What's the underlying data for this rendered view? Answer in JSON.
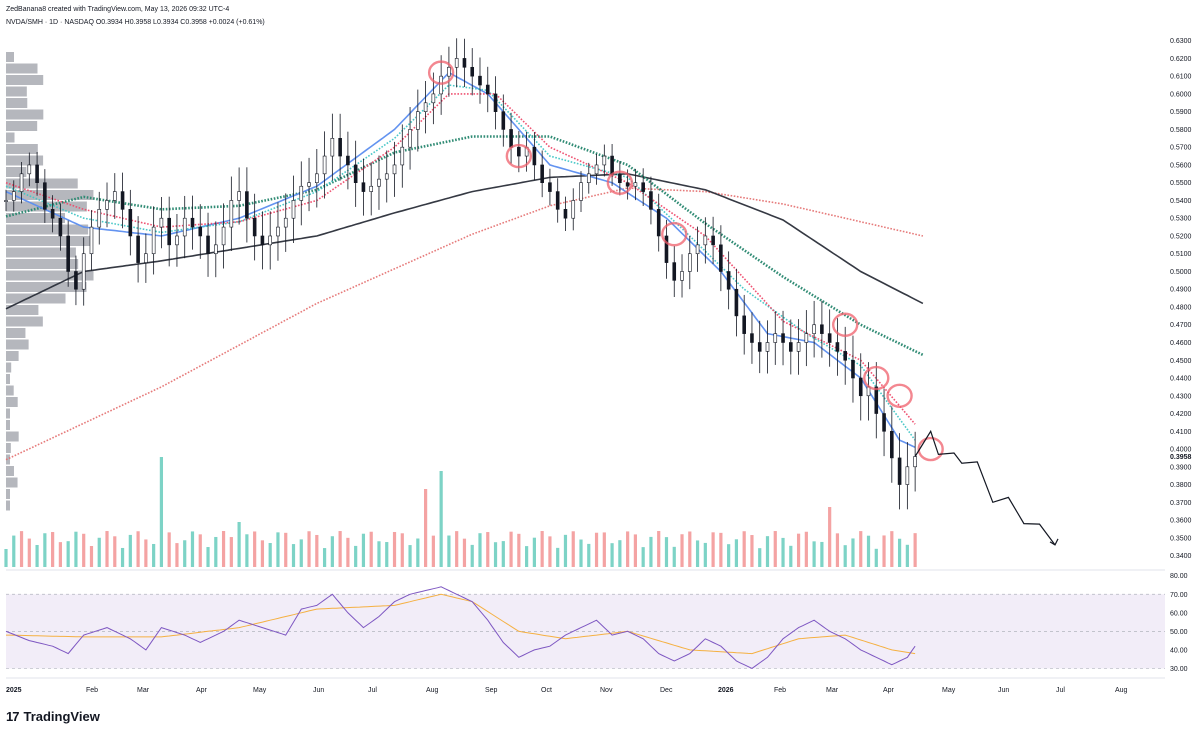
{
  "header": {
    "created_line": "ZedBanana8 created with TradingView.com, May 13, 2026 09:32 UTC-4",
    "symbol_line": "NVDA/SMH · 1D · NASDAQ  O0.3934  H0.3958  L0.3934  C0.3958  +0.0024 (+0.61%)"
  },
  "footer": {
    "brand": "TradingView",
    "logo_mark": "17"
  },
  "chart_data": {
    "type": "line",
    "title": "NVDA/SMH · 1D · NASDAQ",
    "ohlc": {
      "open": 0.3934,
      "high": 0.3958,
      "low": 0.3934,
      "close": 0.3958,
      "change": 0.0024,
      "change_pct": 0.61
    },
    "current_price_label": "0.3958",
    "x_tick_labels": [
      "2025",
      "Feb",
      "Mar",
      "Apr",
      "May",
      "Jun",
      "Jul",
      "Aug",
      "Sep",
      "Oct",
      "Nov",
      "Dec",
      "2026",
      "Feb",
      "Mar",
      "Apr",
      "May",
      "Jun",
      "Jul",
      "Aug"
    ],
    "price_axis": {
      "ylim": [
        0.333,
        0.636
      ],
      "tick_labels": [
        "0.6300",
        "0.6200",
        "0.6100",
        "0.6000",
        "0.5900",
        "0.5800",
        "0.5700",
        "0.5600",
        "0.5500",
        "0.5400",
        "0.5300",
        "0.5200",
        "0.5100",
        "0.5000",
        "0.4900",
        "0.4800",
        "0.4700",
        "0.4600",
        "0.4500",
        "0.4400",
        "0.4300",
        "0.4200",
        "0.4100",
        "0.4000",
        "0.3900",
        "0.3800",
        "0.3700",
        "0.3600",
        "0.3500",
        "0.3400"
      ]
    },
    "rsi_axis": {
      "ylim": [
        27,
        82
      ],
      "tick_labels": [
        "80.00",
        "70.00",
        "60.00",
        "50.00",
        "40.00",
        "30.00"
      ],
      "band": [
        30,
        70
      ]
    },
    "price_path": [
      [
        0,
        0.54
      ],
      [
        1,
        0.545
      ],
      [
        2,
        0.555
      ],
      [
        3,
        0.56
      ],
      [
        4,
        0.55
      ],
      [
        5,
        0.535
      ],
      [
        6,
        0.53
      ],
      [
        7,
        0.52
      ],
      [
        8,
        0.5
      ],
      [
        9,
        0.49
      ],
      [
        10,
        0.51
      ],
      [
        11,
        0.525
      ],
      [
        12,
        0.535
      ],
      [
        13,
        0.54
      ],
      [
        14,
        0.545
      ],
      [
        15,
        0.535
      ],
      [
        16,
        0.52
      ],
      [
        17,
        0.505
      ],
      [
        18,
        0.51
      ],
      [
        19,
        0.525
      ],
      [
        20,
        0.53
      ],
      [
        21,
        0.515
      ],
      [
        22,
        0.52
      ],
      [
        23,
        0.53
      ],
      [
        24,
        0.525
      ],
      [
        25,
        0.52
      ],
      [
        26,
        0.51
      ],
      [
        27,
        0.515
      ],
      [
        28,
        0.525
      ],
      [
        29,
        0.54
      ],
      [
        30,
        0.545
      ],
      [
        31,
        0.53
      ],
      [
        32,
        0.52
      ],
      [
        33,
        0.515
      ],
      [
        34,
        0.52
      ],
      [
        35,
        0.525
      ],
      [
        36,
        0.53
      ],
      [
        37,
        0.54
      ],
      [
        38,
        0.548
      ],
      [
        39,
        0.55
      ],
      [
        40,
        0.555
      ],
      [
        41,
        0.565
      ],
      [
        42,
        0.575
      ],
      [
        43,
        0.565
      ],
      [
        44,
        0.56
      ],
      [
        45,
        0.55
      ],
      [
        46,
        0.545
      ],
      [
        47,
        0.548
      ],
      [
        48,
        0.552
      ],
      [
        49,
        0.555
      ],
      [
        50,
        0.56
      ],
      [
        51,
        0.57
      ],
      [
        52,
        0.58
      ],
      [
        53,
        0.59
      ],
      [
        54,
        0.595
      ],
      [
        55,
        0.6
      ],
      [
        56,
        0.61
      ],
      [
        57,
        0.615
      ],
      [
        58,
        0.62
      ],
      [
        59,
        0.615
      ],
      [
        60,
        0.61
      ],
      [
        61,
        0.605
      ],
      [
        62,
        0.6
      ],
      [
        63,
        0.59
      ],
      [
        64,
        0.58
      ],
      [
        65,
        0.57
      ],
      [
        66,
        0.565
      ],
      [
        67,
        0.57
      ],
      [
        68,
        0.56
      ],
      [
        69,
        0.55
      ],
      [
        70,
        0.545
      ],
      [
        71,
        0.535
      ],
      [
        72,
        0.53
      ],
      [
        73,
        0.54
      ],
      [
        74,
        0.55
      ],
      [
        75,
        0.555
      ],
      [
        76,
        0.56
      ],
      [
        77,
        0.565
      ],
      [
        78,
        0.555
      ],
      [
        79,
        0.55
      ],
      [
        80,
        0.548
      ],
      [
        81,
        0.55
      ],
      [
        82,
        0.545
      ],
      [
        83,
        0.535
      ],
      [
        84,
        0.52
      ],
      [
        85,
        0.505
      ],
      [
        86,
        0.495
      ],
      [
        87,
        0.5
      ],
      [
        88,
        0.51
      ],
      [
        89,
        0.515
      ],
      [
        90,
        0.52
      ],
      [
        91,
        0.515
      ],
      [
        92,
        0.5
      ],
      [
        93,
        0.49
      ],
      [
        94,
        0.475
      ],
      [
        95,
        0.465
      ],
      [
        96,
        0.46
      ],
      [
        97,
        0.455
      ],
      [
        98,
        0.46
      ],
      [
        99,
        0.465
      ],
      [
        100,
        0.46
      ],
      [
        101,
        0.455
      ],
      [
        102,
        0.46
      ],
      [
        103,
        0.465
      ],
      [
        104,
        0.47
      ],
      [
        105,
        0.465
      ],
      [
        106,
        0.46
      ],
      [
        107,
        0.455
      ],
      [
        108,
        0.45
      ],
      [
        109,
        0.44
      ],
      [
        110,
        0.43
      ],
      [
        111,
        0.435
      ],
      [
        112,
        0.42
      ],
      [
        113,
        0.41
      ],
      [
        114,
        0.395
      ],
      [
        115,
        0.38
      ],
      [
        116,
        0.39
      ],
      [
        117,
        0.3958
      ]
    ],
    "projection_path": [
      [
        117,
        0.3958
      ],
      [
        119,
        0.41
      ],
      [
        120,
        0.397
      ],
      [
        122,
        0.4
      ],
      [
        123,
        0.392
      ],
      [
        125,
        0.395
      ],
      [
        127,
        0.37
      ],
      [
        129,
        0.375
      ],
      [
        131,
        0.358
      ],
      [
        133,
        0.36
      ],
      [
        135,
        0.346
      ]
    ],
    "series": [
      {
        "name": "",
        "color": "#e57373",
        "points": [
          [
            0,
            0.394
          ],
          [
            20,
            0.435
          ],
          [
            40,
            0.482
          ],
          [
            60,
            0.521
          ],
          [
            70,
            0.537
          ],
          [
            80,
            0.547
          ],
          [
            90,
            0.545
          ],
          [
            100,
            0.538
          ],
          [
            110,
            0.528
          ],
          [
            118,
            0.52
          ]
        ]
      },
      {
        "name": "",
        "color": "#2a2e39",
        "points": [
          [
            0,
            0.479
          ],
          [
            10,
            0.5
          ],
          [
            20,
            0.506
          ],
          [
            30,
            0.513
          ],
          [
            40,
            0.52
          ],
          [
            50,
            0.533
          ],
          [
            60,
            0.545
          ],
          [
            70,
            0.553
          ],
          [
            80,
            0.555
          ],
          [
            90,
            0.546
          ],
          [
            100,
            0.529
          ],
          [
            110,
            0.5
          ],
          [
            118,
            0.482
          ]
        ]
      },
      {
        "name": "",
        "color": "#26866e",
        "points": [
          [
            0,
            0.531
          ],
          [
            10,
            0.542
          ],
          [
            20,
            0.535
          ],
          [
            30,
            0.537
          ],
          [
            40,
            0.546
          ],
          [
            50,
            0.567
          ],
          [
            60,
            0.576
          ],
          [
            70,
            0.576
          ],
          [
            80,
            0.56
          ],
          [
            90,
            0.527
          ],
          [
            100,
            0.497
          ],
          [
            110,
            0.47
          ],
          [
            118,
            0.453
          ]
        ]
      },
      {
        "name": "",
        "color": "#5b8def",
        "points": [
          [
            0,
            0.545
          ],
          [
            10,
            0.525
          ],
          [
            20,
            0.52
          ],
          [
            30,
            0.53
          ],
          [
            40,
            0.548
          ],
          [
            50,
            0.58
          ],
          [
            57,
            0.612
          ],
          [
            62,
            0.6
          ],
          [
            70,
            0.56
          ],
          [
            78,
            0.55
          ],
          [
            85,
            0.53
          ],
          [
            92,
            0.5
          ],
          [
            98,
            0.465
          ],
          [
            104,
            0.46
          ],
          [
            110,
            0.44
          ],
          [
            115,
            0.405
          ],
          [
            117,
            0.401
          ]
        ]
      },
      {
        "name": "",
        "color": "#41c5c5",
        "points": [
          [
            0,
            0.548
          ],
          [
            10,
            0.53
          ],
          [
            20,
            0.522
          ],
          [
            30,
            0.528
          ],
          [
            40,
            0.545
          ],
          [
            50,
            0.575
          ],
          [
            57,
            0.605
          ],
          [
            62,
            0.602
          ],
          [
            70,
            0.565
          ],
          [
            80,
            0.553
          ],
          [
            88,
            0.52
          ],
          [
            95,
            0.49
          ],
          [
            103,
            0.465
          ],
          [
            110,
            0.447
          ],
          [
            117,
            0.405
          ]
        ]
      },
      {
        "name": "",
        "color": "#ee4a6a",
        "points": [
          [
            0,
            0.55
          ],
          [
            10,
            0.535
          ],
          [
            20,
            0.525
          ],
          [
            30,
            0.528
          ],
          [
            40,
            0.54
          ],
          [
            50,
            0.57
          ],
          [
            57,
            0.6
          ],
          [
            63,
            0.6
          ],
          [
            70,
            0.57
          ],
          [
            80,
            0.55
          ],
          [
            90,
            0.52
          ],
          [
            100,
            0.472
          ],
          [
            110,
            0.45
          ],
          [
            117,
            0.414
          ]
        ]
      }
    ],
    "rsi": [
      [
        0,
        50
      ],
      [
        3,
        45
      ],
      [
        6,
        42
      ],
      [
        8,
        38
      ],
      [
        10,
        48
      ],
      [
        13,
        52
      ],
      [
        16,
        46
      ],
      [
        18,
        40
      ],
      [
        20,
        52
      ],
      [
        23,
        48
      ],
      [
        25,
        44
      ],
      [
        28,
        50
      ],
      [
        30,
        56
      ],
      [
        33,
        52
      ],
      [
        36,
        48
      ],
      [
        38,
        62
      ],
      [
        40,
        64
      ],
      [
        42,
        70
      ],
      [
        44,
        60
      ],
      [
        46,
        52
      ],
      [
        48,
        58
      ],
      [
        50,
        66
      ],
      [
        52,
        70
      ],
      [
        54,
        72
      ],
      [
        56,
        74
      ],
      [
        58,
        70
      ],
      [
        60,
        66
      ],
      [
        62,
        56
      ],
      [
        64,
        44
      ],
      [
        66,
        36
      ],
      [
        68,
        40
      ],
      [
        70,
        42
      ],
      [
        72,
        48
      ],
      [
        74,
        52
      ],
      [
        76,
        56
      ],
      [
        78,
        48
      ],
      [
        80,
        50
      ],
      [
        82,
        46
      ],
      [
        84,
        38
      ],
      [
        86,
        34
      ],
      [
        88,
        38
      ],
      [
        90,
        46
      ],
      [
        92,
        42
      ],
      [
        94,
        34
      ],
      [
        96,
        30
      ],
      [
        98,
        36
      ],
      [
        100,
        46
      ],
      [
        102,
        52
      ],
      [
        104,
        56
      ],
      [
        106,
        50
      ],
      [
        108,
        46
      ],
      [
        110,
        40
      ],
      [
        112,
        36
      ],
      [
        114,
        32
      ],
      [
        116,
        36
      ],
      [
        117,
        42
      ]
    ],
    "rsi_ma": [
      [
        0,
        48
      ],
      [
        10,
        47
      ],
      [
        20,
        47
      ],
      [
        30,
        52
      ],
      [
        40,
        62
      ],
      [
        50,
        64
      ],
      [
        56,
        70
      ],
      [
        60,
        66
      ],
      [
        66,
        50
      ],
      [
        72,
        46
      ],
      [
        80,
        50
      ],
      [
        88,
        40
      ],
      [
        96,
        38
      ],
      [
        102,
        46
      ],
      [
        108,
        48
      ],
      [
        114,
        40
      ],
      [
        117,
        38
      ]
    ],
    "ylim": [
      0.333,
      0.636
    ]
  }
}
